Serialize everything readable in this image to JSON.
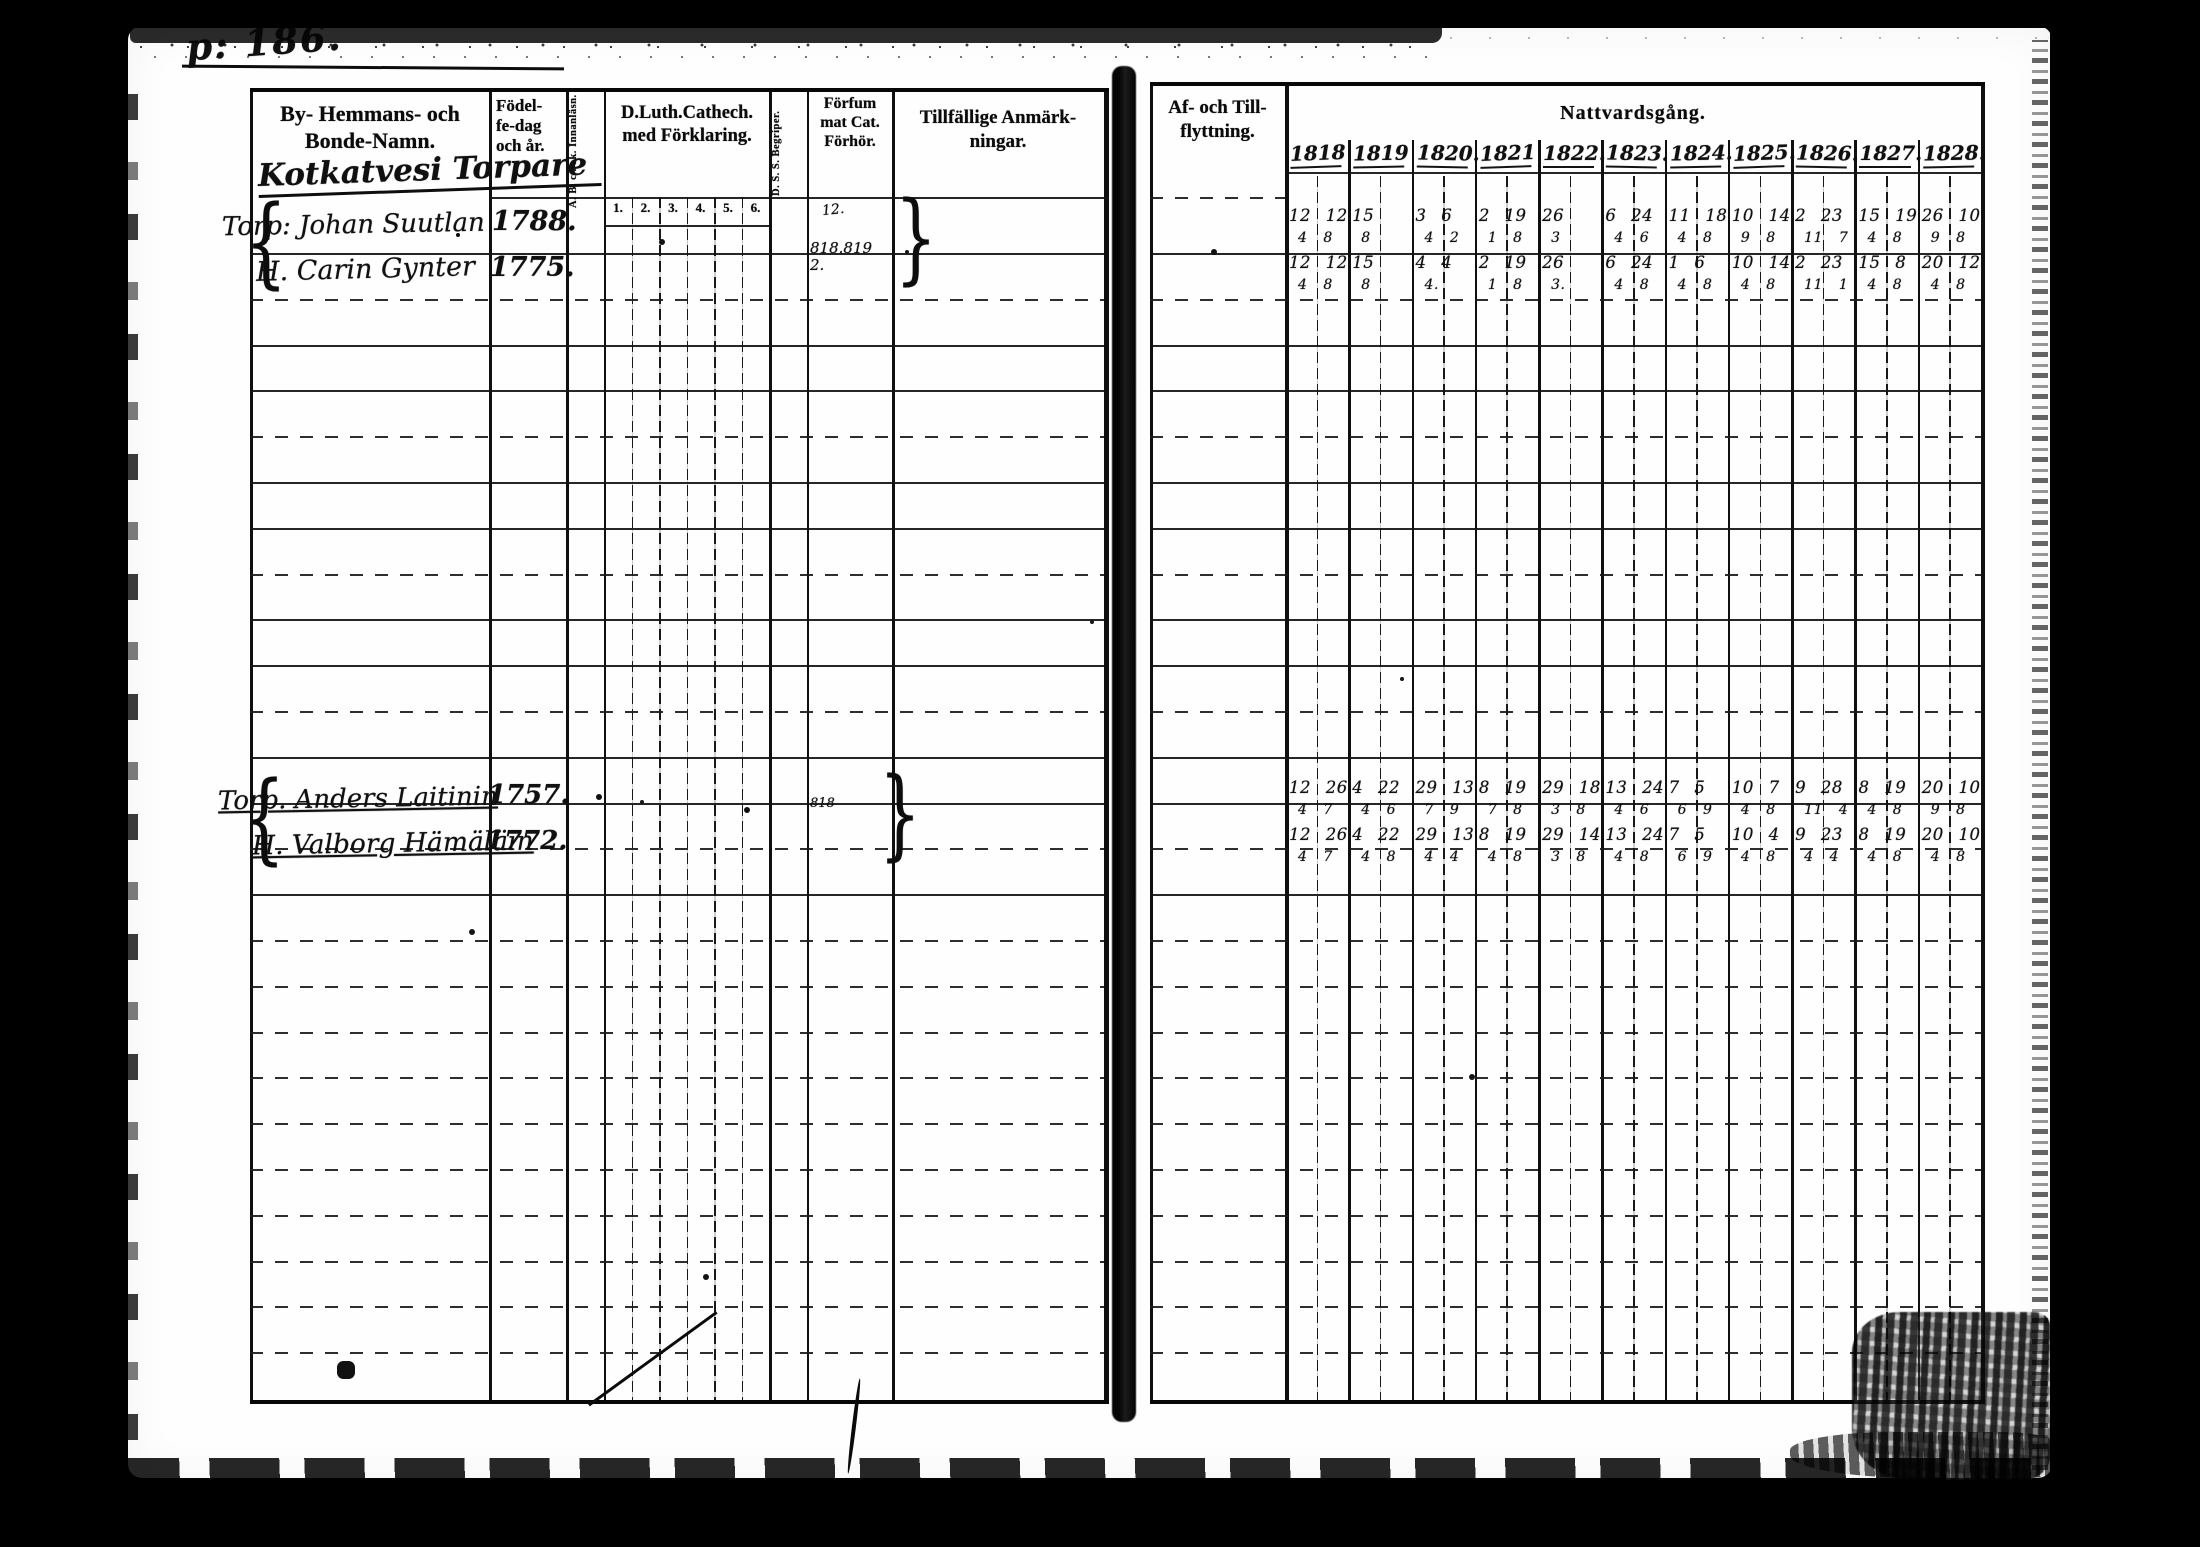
{
  "page_number": "p: 186.",
  "marks": {
    "group_brace": "{",
    "forhor_brace": "}"
  },
  "left_page": {
    "headers": {
      "name_col": [
        "By- Hemmans- och",
        "Bonde-Namn."
      ],
      "birth_col": [
        "Födel-",
        "fe-dag",
        "och år."
      ],
      "abc_col": "A. B. c bok. Innanläsn.",
      "catechism_col": [
        "D.Luth.Cathech.",
        "med Förklaring."
      ],
      "catechism_subcols": [
        "1.",
        "2.",
        "3.",
        "4.",
        "5.",
        "6."
      ],
      "begriper_col": "D. S. S. Begriper.",
      "forhor_col": [
        "Förfum",
        "mat Cat.",
        "Förhör."
      ],
      "anmark_col": [
        "Tillfällige Anmärk-",
        "ningar."
      ]
    },
    "groups": [
      {
        "title": "Kotkatvesi Torpare",
        "members": [
          {
            "name": "Torp: Johan Suutlan",
            "birth_year": "1788.",
            "forhor_note": "12."
          },
          {
            "name": "H. Carin Gynter",
            "birth_year": "1775.",
            "forhor_note": "818.819\n2."
          }
        ]
      },
      {
        "members": [
          {
            "name": "Torp. Anders Laitinin",
            "birth_year": "1757."
          },
          {
            "name": "H. Valborg Hämäläin",
            "birth_year": "1772.",
            "forhor_note": "818"
          }
        ]
      }
    ]
  },
  "right_page": {
    "headers": {
      "moving_col": [
        "Af- och Till-",
        "flyttning."
      ],
      "communion_title": "Nattvardsgång."
    },
    "years": [
      "1818",
      "1819",
      "1820.",
      "1821",
      "1822.",
      "1823.",
      "1824.",
      "1825.",
      "1826.",
      "1827.",
      "1828."
    ],
    "communion_groups": [
      {
        "rows": [
          [
            "12 12",
            "15",
            "3 6",
            "2 19",
            "26",
            "6 24",
            "11 18",
            "10 14",
            "2 23",
            "15 19",
            "26 10"
          ],
          [
            "4 8",
            "8",
            "4 2",
            "1 8",
            "3",
            "4 6",
            "4 8",
            "9 8",
            "11 7",
            "4 8",
            "9 8"
          ],
          [
            "12 12",
            "15",
            "4 4",
            "2 19",
            "26",
            "6 24",
            "1 6",
            "10 14",
            "2 23",
            "15 8",
            "20 12"
          ],
          [
            "4 8",
            "8",
            "4.",
            "1 8",
            "3.",
            "4 8",
            "4 8",
            "4 8",
            "11 1",
            "4 8",
            "4 8"
          ]
        ]
      },
      {
        "rows": [
          [
            "12 26",
            "4 22",
            "29 13",
            "8 19",
            "29 18",
            "13 24",
            "7 5",
            "10 7",
            "9 28",
            "8 19",
            "20 10"
          ],
          [
            "4 7",
            "4 6",
            "7 9",
            "7 8",
            "3 8",
            "4 6",
            "6 9",
            "4 8",
            "11 4",
            "4 8",
            "9 8"
          ],
          [
            "12 26",
            "4 22",
            "29 13",
            "8 19",
            "29 14",
            "13 24",
            "7 5",
            "10 4",
            "9 23",
            "8 19",
            "20 10"
          ],
          [
            "4 7",
            "4 8",
            "4 4",
            "4 8",
            "3 8",
            "4 8",
            "6 9",
            "4 8",
            "4 4",
            "4 8",
            "4 8"
          ]
        ]
      }
    ]
  }
}
